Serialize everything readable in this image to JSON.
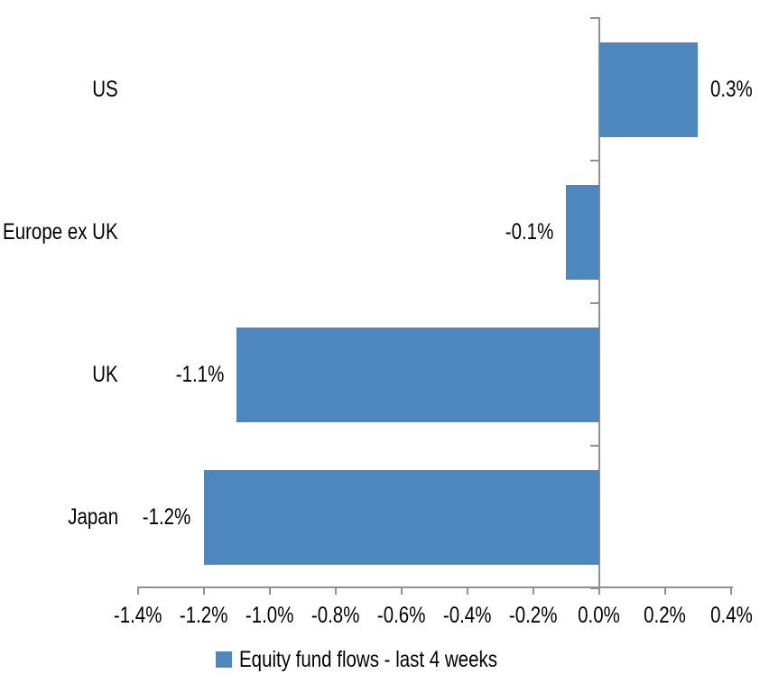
{
  "page": {
    "background_color": "#ffffff"
  },
  "chart_data": {
    "type": "bar",
    "orientation": "horizontal",
    "categories": [
      "US",
      "Europe ex UK",
      "UK",
      "Japan"
    ],
    "series": [
      {
        "name": "Equity fund flows - last 4 weeks",
        "values": [
          0.3,
          -0.1,
          -1.1,
          -1.2
        ],
        "data_labels": [
          "0.3%",
          "-0.1%",
          "-1.1%",
          "-1.2%"
        ],
        "color": "#4E86BE"
      }
    ],
    "value_axis": {
      "min": -1.4,
      "max": 0.4,
      "tick_step": 0.2,
      "ticks": [
        -1.4,
        -1.2,
        -1.0,
        -0.8,
        -0.6,
        -0.4,
        -0.2,
        0.0,
        0.2,
        0.4
      ],
      "tick_labels": [
        "-1.4%",
        "-1.2%",
        "-1.0%",
        "-0.8%",
        "-0.6%",
        "-0.4%",
        "-0.2%",
        "0.0%",
        "0.2%",
        "0.4%"
      ]
    },
    "legend": {
      "position": "bottom",
      "entries": [
        {
          "label": "Equity fund flows - last 4 weeks",
          "swatch_color": "#4E86BE"
        }
      ]
    },
    "grid": false,
    "axis_color": "#919191",
    "text_color": "#000000"
  }
}
